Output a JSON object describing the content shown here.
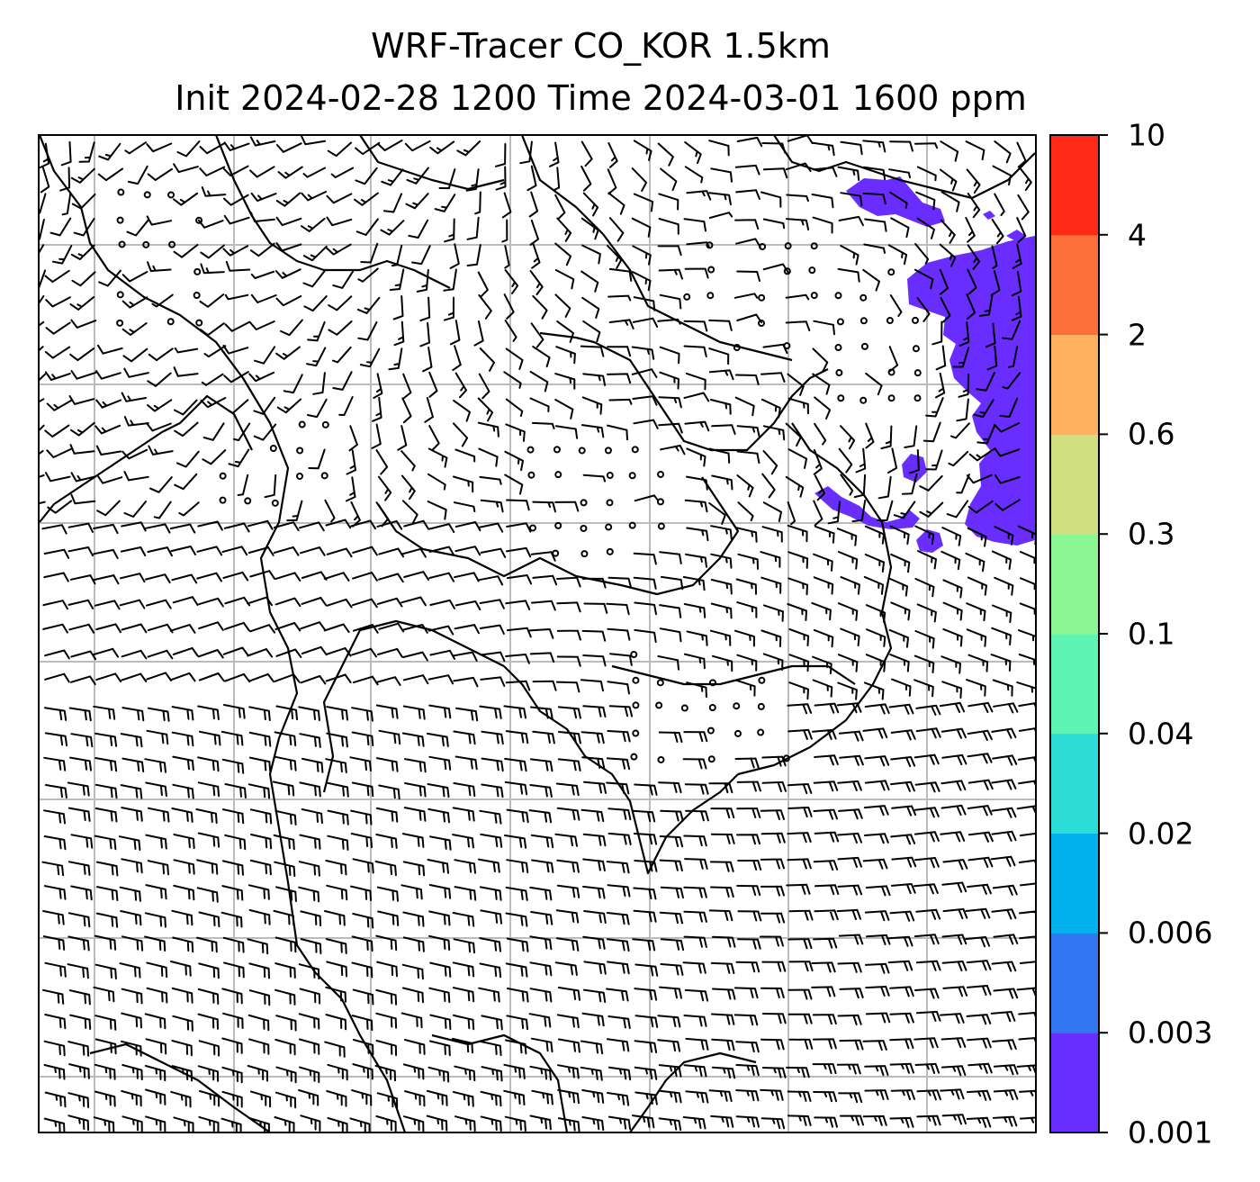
{
  "title": {
    "line1": "WRF-Tracer CO_KOR 1.5km",
    "line2": "Init 2024-02-28 1200 Time 2024-03-01 1600 ppm"
  },
  "colorbar": {
    "levels": [
      "0.001",
      "0.003",
      "0.006",
      "0.02",
      "0.04",
      "0.1",
      "0.3",
      "0.6",
      "2",
      "4",
      "10"
    ],
    "colors": [
      "#6a2dff",
      "#3476f2",
      "#02b2ee",
      "#2cdcd6",
      "#5ef5b4",
      "#8cf694",
      "#d0e080",
      "#feb15f",
      "#ff6f39",
      "#ff2a17"
    ]
  },
  "map": {
    "tracer_fill_color": "#6a2dff",
    "grid_color": "#bbbbbb",
    "line_color": "#000000"
  }
}
